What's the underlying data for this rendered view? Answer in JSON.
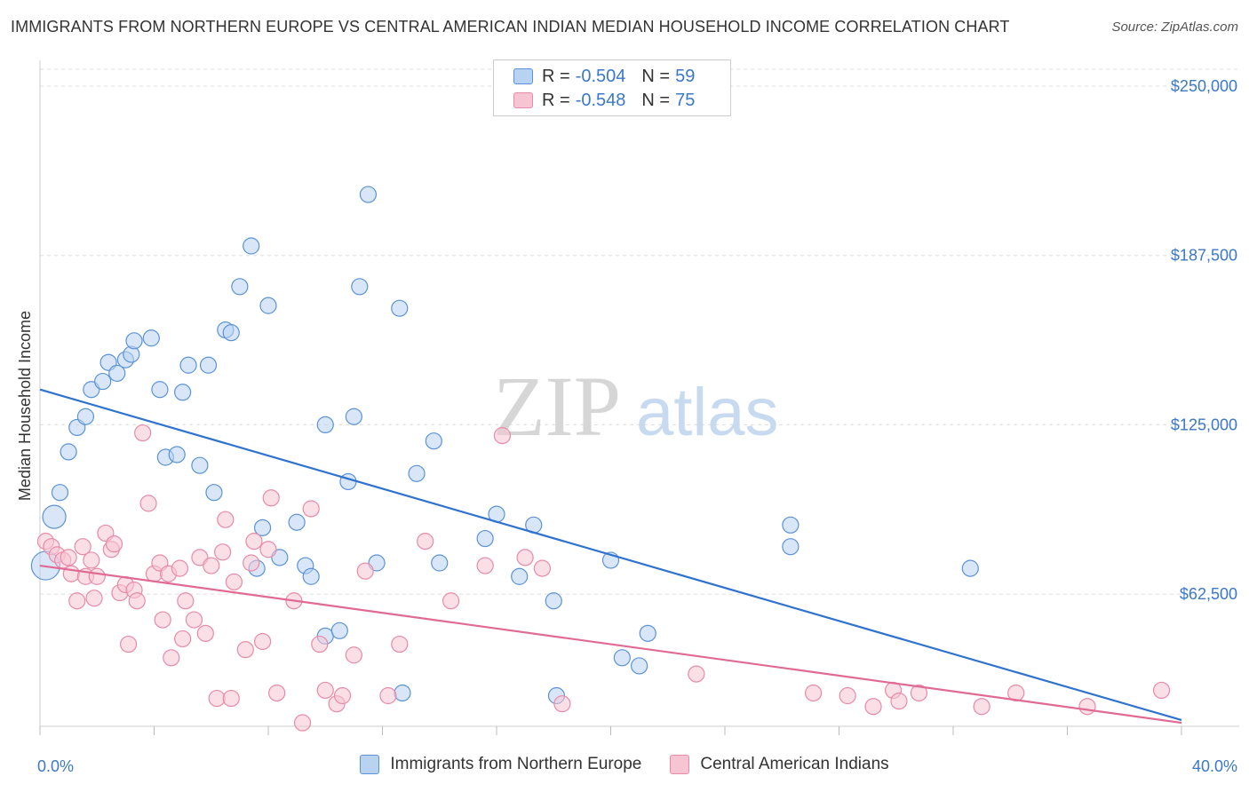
{
  "header": {
    "title": "IMMIGRANTS FROM NORTHERN EUROPE VS CENTRAL AMERICAN INDIAN MEDIAN HOUSEHOLD INCOME CORRELATION CHART",
    "source": "Source: ZipAtlas.com"
  },
  "watermark": {
    "zip": "ZIP",
    "atlas": "atlas"
  },
  "legend_top": {
    "rows": [
      {
        "r_label": "R =",
        "r_value": "-0.504",
        "n_label": "N =",
        "n_value": "59"
      },
      {
        "r_label": "R =",
        "r_value": "-0.548",
        "n_label": "N =",
        "n_value": "75"
      }
    ]
  },
  "chart_data": {
    "type": "scatter",
    "title": "IMMIGRANTS FROM NORTHERN EUROPE VS CENTRAL AMERICAN INDIAN MEDIAN HOUSEHOLD INCOME CORRELATION CHART",
    "xlabel": "",
    "ylabel": "Median Household Income",
    "xlim": [
      0,
      40
    ],
    "ylim": [
      0,
      260000
    ],
    "x_tick_labels": [
      "0.0%",
      "40.0%"
    ],
    "y_ticks": [
      62500,
      125000,
      187500,
      250000
    ],
    "y_tick_labels": [
      "$62,500",
      "$125,000",
      "$187,500",
      "$250,000"
    ],
    "grid": true,
    "legend_placement": "bottom",
    "series": [
      {
        "name": "Immigrants from Northern Europe",
        "color": "#5b93d8",
        "fill": "#b8d2f2",
        "line_color": "#2f72d0",
        "trend": {
          "x0": 0,
          "y0": 138000,
          "x1": 40,
          "y1": 16000
        },
        "points": [
          [
            0.2,
            73000
          ],
          [
            0.5,
            91000
          ],
          [
            0.7,
            100000
          ],
          [
            1.0,
            115000
          ],
          [
            1.3,
            124000
          ],
          [
            1.6,
            128000
          ],
          [
            1.8,
            138000
          ],
          [
            2.2,
            141000
          ],
          [
            2.4,
            148000
          ],
          [
            2.7,
            144000
          ],
          [
            3.0,
            149000
          ],
          [
            3.2,
            151000
          ],
          [
            3.3,
            156000
          ],
          [
            3.9,
            157000
          ],
          [
            4.2,
            138000
          ],
          [
            4.4,
            113000
          ],
          [
            4.8,
            114000
          ],
          [
            5.0,
            137000
          ],
          [
            5.2,
            147000
          ],
          [
            5.6,
            110000
          ],
          [
            5.9,
            147000
          ],
          [
            6.1,
            100000
          ],
          [
            6.5,
            160000
          ],
          [
            6.7,
            159000
          ],
          [
            7.0,
            176000
          ],
          [
            7.4,
            191000
          ],
          [
            7.6,
            72000
          ],
          [
            7.8,
            87000
          ],
          [
            8.0,
            169000
          ],
          [
            8.4,
            76000
          ],
          [
            9.0,
            89000
          ],
          [
            9.3,
            73000
          ],
          [
            9.5,
            69000
          ],
          [
            10.0,
            125000
          ],
          [
            10.0,
            47000
          ],
          [
            10.5,
            49000
          ],
          [
            10.8,
            104000
          ],
          [
            11.0,
            128000
          ],
          [
            11.2,
            176000
          ],
          [
            11.5,
            210000
          ],
          [
            11.8,
            74000
          ],
          [
            12.6,
            168000
          ],
          [
            12.7,
            26000
          ],
          [
            13.2,
            107000
          ],
          [
            13.8,
            119000
          ],
          [
            14.0,
            74000
          ],
          [
            15.6,
            83000
          ],
          [
            16.0,
            92000
          ],
          [
            16.8,
            69000
          ],
          [
            17.3,
            88000
          ],
          [
            18.0,
            60000
          ],
          [
            18.1,
            25000
          ],
          [
            20.0,
            75000
          ],
          [
            20.4,
            39000
          ],
          [
            21.0,
            36000
          ],
          [
            21.3,
            48000
          ],
          [
            26.3,
            88000
          ],
          [
            26.3,
            80000
          ],
          [
            32.6,
            72000
          ]
        ]
      },
      {
        "name": "Central American Indians",
        "color": "#e88aa8",
        "fill": "#f7c4d4",
        "line_color": "#e06a94",
        "trend": {
          "x0": 0,
          "y0": 73000,
          "x1": 40,
          "y1": 15000
        },
        "points": [
          [
            0.2,
            82000
          ],
          [
            0.4,
            80000
          ],
          [
            0.6,
            77000
          ],
          [
            0.8,
            75000
          ],
          [
            1.0,
            76000
          ],
          [
            1.1,
            70000
          ],
          [
            1.3,
            60000
          ],
          [
            1.5,
            80000
          ],
          [
            1.6,
            69000
          ],
          [
            1.8,
            75000
          ],
          [
            1.9,
            61000
          ],
          [
            2.0,
            69000
          ],
          [
            2.3,
            85000
          ],
          [
            2.5,
            79000
          ],
          [
            2.6,
            81000
          ],
          [
            2.8,
            63000
          ],
          [
            3.0,
            66000
          ],
          [
            3.1,
            44000
          ],
          [
            3.3,
            64000
          ],
          [
            3.4,
            60000
          ],
          [
            3.6,
            122000
          ],
          [
            3.8,
            96000
          ],
          [
            4.0,
            70000
          ],
          [
            4.2,
            74000
          ],
          [
            4.3,
            53000
          ],
          [
            4.5,
            70000
          ],
          [
            4.6,
            39000
          ],
          [
            4.9,
            72000
          ],
          [
            5.0,
            46000
          ],
          [
            5.1,
            60000
          ],
          [
            5.4,
            53000
          ],
          [
            5.6,
            76000
          ],
          [
            5.8,
            48000
          ],
          [
            6.0,
            73000
          ],
          [
            6.2,
            24000
          ],
          [
            6.4,
            78000
          ],
          [
            6.5,
            90000
          ],
          [
            6.7,
            24000
          ],
          [
            6.8,
            67000
          ],
          [
            7.2,
            42000
          ],
          [
            7.4,
            74000
          ],
          [
            7.5,
            82000
          ],
          [
            7.8,
            45000
          ],
          [
            8.0,
            79000
          ],
          [
            8.1,
            98000
          ],
          [
            8.3,
            26000
          ],
          [
            8.9,
            60000
          ],
          [
            9.2,
            15000
          ],
          [
            9.5,
            94000
          ],
          [
            9.8,
            44000
          ],
          [
            10.0,
            27000
          ],
          [
            10.4,
            22000
          ],
          [
            10.6,
            25000
          ],
          [
            11.0,
            40000
          ],
          [
            11.4,
            71000
          ],
          [
            12.2,
            25000
          ],
          [
            12.6,
            44000
          ],
          [
            13.5,
            82000
          ],
          [
            14.4,
            60000
          ],
          [
            15.6,
            73000
          ],
          [
            16.2,
            121000
          ],
          [
            17.0,
            76000
          ],
          [
            17.6,
            72000
          ],
          [
            18.3,
            22000
          ],
          [
            23.0,
            33000
          ],
          [
            27.1,
            26000
          ],
          [
            28.3,
            25000
          ],
          [
            29.2,
            21000
          ],
          [
            29.9,
            27000
          ],
          [
            30.1,
            23000
          ],
          [
            30.8,
            26000
          ],
          [
            33.0,
            21000
          ],
          [
            34.2,
            26000
          ],
          [
            36.7,
            21000
          ],
          [
            39.3,
            27000
          ]
        ]
      }
    ]
  }
}
